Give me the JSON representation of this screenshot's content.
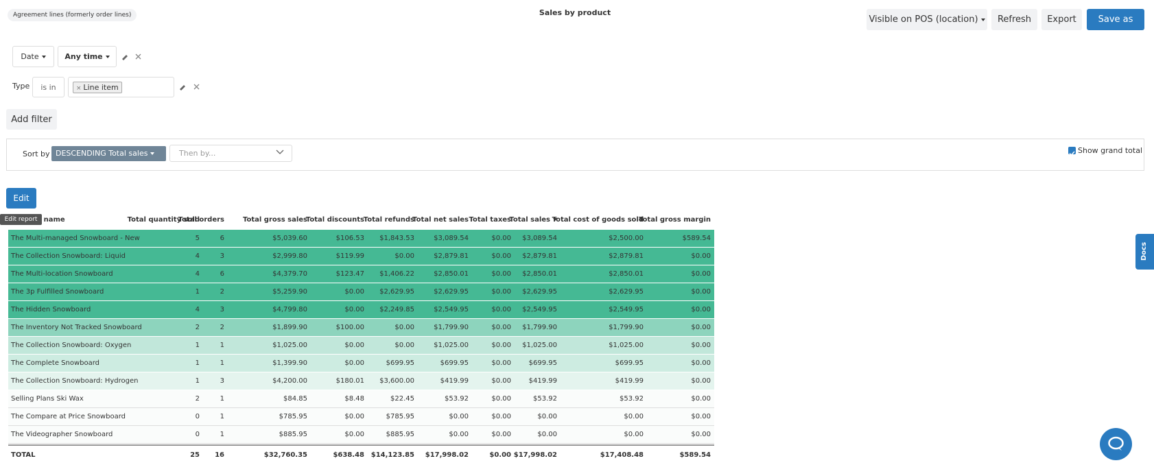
{
  "header": {
    "badge": "Agreement lines (formerly order lines)",
    "title": "Sales by product",
    "buttons": [
      "Visible on POS (location)",
      "Refresh",
      "Export",
      "Save as"
    ]
  },
  "filters": {
    "date": {
      "field": "Date",
      "value": "Any time"
    },
    "type": {
      "label": "Type",
      "operator": "is in",
      "chip": "Line item"
    },
    "add": "Add filter"
  },
  "sort": {
    "label": "Sort by",
    "value": "DESCENDING Total sales",
    "then": "Then by...",
    "grand_total": "Show grand total"
  },
  "edit": {
    "button": "Edit",
    "tooltip": "Edit report"
  },
  "docs": "Docs",
  "table": {
    "headers": [
      "Product name",
      "Total quantity sold",
      "Total orders",
      "Total gross sales",
      "Total discounts",
      "Total refunds",
      "Total net sales",
      "Total taxes",
      "Total sales",
      "Total cost of goods sold",
      "Total gross margin"
    ],
    "rows": [
      [
        "The Multi-managed Snowboard - New",
        "5",
        "6",
        "$5,039.60",
        "$106.53",
        "$1,843.53",
        "$3,089.54",
        "$0.00",
        "$3,089.54",
        "$2,500.00",
        "$589.54"
      ],
      [
        "The Collection Snowboard: Liquid",
        "4",
        "3",
        "$2,999.80",
        "$119.99",
        "$0.00",
        "$2,879.81",
        "$0.00",
        "$2,879.81",
        "$2,879.81",
        "$0.00"
      ],
      [
        "The Multi-location Snowboard",
        "4",
        "6",
        "$4,379.70",
        "$123.47",
        "$1,406.22",
        "$2,850.01",
        "$0.00",
        "$2,850.01",
        "$2,850.01",
        "$0.00"
      ],
      [
        "The 3p Fulfilled Snowboard",
        "1",
        "2",
        "$5,259.90",
        "$0.00",
        "$2,629.95",
        "$2,629.95",
        "$0.00",
        "$2,629.95",
        "$2,629.95",
        "$0.00"
      ],
      [
        "The Hidden Snowboard",
        "4",
        "3",
        "$4,799.80",
        "$0.00",
        "$2,249.85",
        "$2,549.95",
        "$0.00",
        "$2,549.95",
        "$2,549.95",
        "$0.00"
      ],
      [
        "The Inventory Not Tracked Snowboard",
        "2",
        "2",
        "$1,899.90",
        "$100.00",
        "$0.00",
        "$1,799.90",
        "$0.00",
        "$1,799.90",
        "$1,799.90",
        "$0.00"
      ],
      [
        "The Collection Snowboard: Oxygen",
        "1",
        "1",
        "$1,025.00",
        "$0.00",
        "$0.00",
        "$1,025.00",
        "$0.00",
        "$1,025.00",
        "$1,025.00",
        "$0.00"
      ],
      [
        "The Complete Snowboard",
        "1",
        "1",
        "$1,399.90",
        "$0.00",
        "$699.95",
        "$699.95",
        "$0.00",
        "$699.95",
        "$699.95",
        "$0.00"
      ],
      [
        "The Collection Snowboard: Hydrogen",
        "1",
        "3",
        "$4,200.00",
        "$180.01",
        "$3,600.00",
        "$419.99",
        "$0.00",
        "$419.99",
        "$419.99",
        "$0.00"
      ],
      [
        "Selling Plans Ski Wax",
        "2",
        "1",
        "$84.85",
        "$8.48",
        "$22.45",
        "$53.92",
        "$0.00",
        "$53.92",
        "$53.92",
        "$0.00"
      ],
      [
        "The Compare at Price Snowboard",
        "0",
        "1",
        "$785.95",
        "$0.00",
        "$785.95",
        "$0.00",
        "$0.00",
        "$0.00",
        "$0.00",
        "$0.00"
      ],
      [
        "The Videographer Snowboard",
        "0",
        "1",
        "$885.95",
        "$0.00",
        "$885.95",
        "$0.00",
        "$0.00",
        "$0.00",
        "$0.00",
        "$0.00"
      ]
    ],
    "row_colors": [
      "#45b994",
      "#45b994",
      "#45b994",
      "#45b994",
      "#45b994",
      "#8dd4bd",
      "#c1e7da",
      "#cdece1",
      "#e4f4ee",
      "#fafcfb",
      "#fafcfb",
      "#fafcfb"
    ],
    "total": [
      "TOTAL",
      "25",
      "16",
      "$32,760.35",
      "$638.48",
      "$14,123.85",
      "$17,998.02",
      "$0.00",
      "$17,998.02",
      "$17,408.48",
      "$589.54"
    ]
  }
}
